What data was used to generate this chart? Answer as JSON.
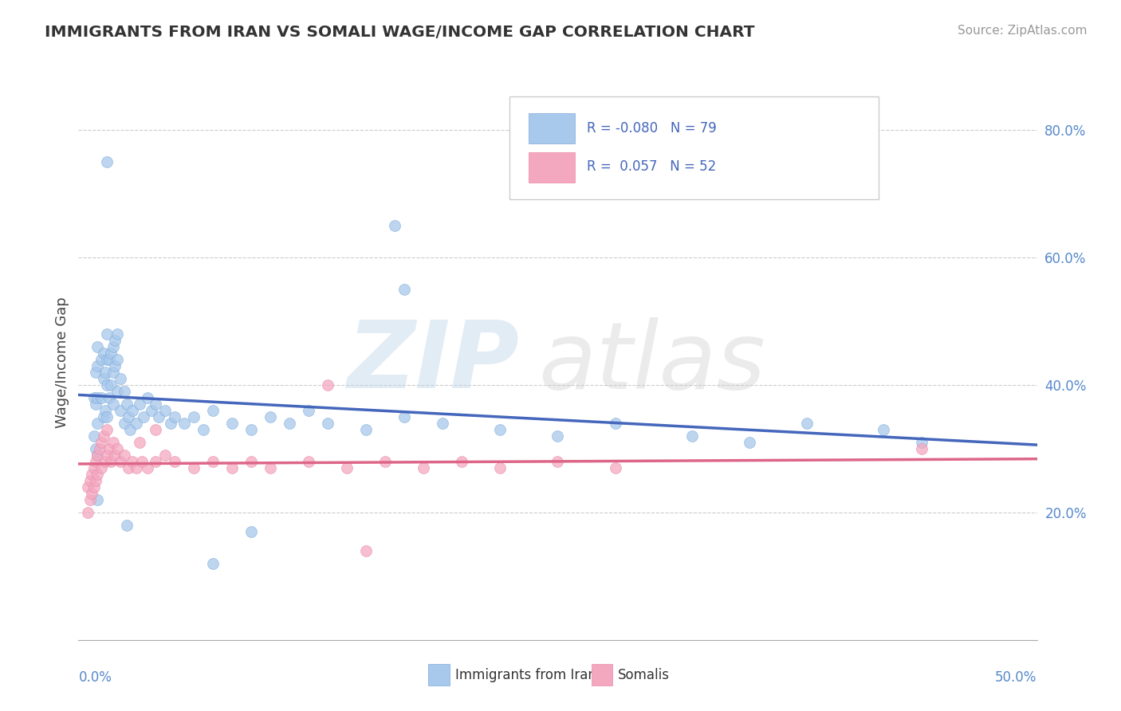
{
  "title": "IMMIGRANTS FROM IRAN VS SOMALI WAGE/INCOME GAP CORRELATION CHART",
  "source": "Source: ZipAtlas.com",
  "ylabel": "Wage/Income Gap",
  "legend_label1": "Immigrants from Iran",
  "legend_label2": "Somalis",
  "color_iran": "#a8c8ec",
  "color_somali": "#f4a8c0",
  "color_iran_line": "#4466bb",
  "color_somali_line": "#dd6688",
  "xmin": 0.0,
  "xmax": 0.5,
  "ymin": 0.0,
  "ymax": 0.87,
  "yticks": [
    0.2,
    0.4,
    0.6,
    0.8
  ],
  "ytick_labels": [
    "20.0%",
    "40.0%",
    "60.0%",
    "80.0%"
  ],
  "iran_x": [
    0.008,
    0.008,
    0.009,
    0.009,
    0.009,
    0.01,
    0.01,
    0.01,
    0.01,
    0.01,
    0.01,
    0.012,
    0.012,
    0.013,
    0.013,
    0.013,
    0.014,
    0.014,
    0.015,
    0.015,
    0.015,
    0.015,
    0.016,
    0.016,
    0.017,
    0.017,
    0.018,
    0.018,
    0.018,
    0.019,
    0.019,
    0.02,
    0.02,
    0.02,
    0.022,
    0.022,
    0.024,
    0.024,
    0.025,
    0.026,
    0.027,
    0.028,
    0.03,
    0.032,
    0.034,
    0.036,
    0.038,
    0.04,
    0.042,
    0.045,
    0.048,
    0.05,
    0.055,
    0.06,
    0.065,
    0.07,
    0.08,
    0.09,
    0.1,
    0.11,
    0.12,
    0.13,
    0.15,
    0.17,
    0.19,
    0.22,
    0.25,
    0.28,
    0.32,
    0.35,
    0.38,
    0.42,
    0.44,
    0.015,
    0.165,
    0.17,
    0.09,
    0.07,
    0.025
  ],
  "iran_y": [
    0.38,
    0.32,
    0.42,
    0.37,
    0.3,
    0.46,
    0.43,
    0.38,
    0.34,
    0.29,
    0.22,
    0.44,
    0.38,
    0.45,
    0.41,
    0.35,
    0.42,
    0.36,
    0.48,
    0.44,
    0.4,
    0.35,
    0.44,
    0.38,
    0.45,
    0.4,
    0.46,
    0.42,
    0.37,
    0.47,
    0.43,
    0.48,
    0.44,
    0.39,
    0.41,
    0.36,
    0.39,
    0.34,
    0.37,
    0.35,
    0.33,
    0.36,
    0.34,
    0.37,
    0.35,
    0.38,
    0.36,
    0.37,
    0.35,
    0.36,
    0.34,
    0.35,
    0.34,
    0.35,
    0.33,
    0.36,
    0.34,
    0.33,
    0.35,
    0.34,
    0.36,
    0.34,
    0.33,
    0.35,
    0.34,
    0.33,
    0.32,
    0.34,
    0.32,
    0.31,
    0.34,
    0.33,
    0.31,
    0.75,
    0.65,
    0.55,
    0.17,
    0.12,
    0.18
  ],
  "somali_x": [
    0.005,
    0.005,
    0.006,
    0.006,
    0.007,
    0.007,
    0.008,
    0.008,
    0.009,
    0.009,
    0.01,
    0.01,
    0.011,
    0.012,
    0.012,
    0.013,
    0.014,
    0.015,
    0.015,
    0.016,
    0.017,
    0.018,
    0.019,
    0.02,
    0.022,
    0.024,
    0.026,
    0.028,
    0.03,
    0.033,
    0.036,
    0.04,
    0.045,
    0.05,
    0.06,
    0.07,
    0.08,
    0.09,
    0.1,
    0.12,
    0.14,
    0.16,
    0.18,
    0.2,
    0.22,
    0.25,
    0.28,
    0.44,
    0.13,
    0.15,
    0.032,
    0.04
  ],
  "somali_y": [
    0.24,
    0.2,
    0.25,
    0.22,
    0.26,
    0.23,
    0.27,
    0.24,
    0.28,
    0.25,
    0.29,
    0.26,
    0.3,
    0.31,
    0.27,
    0.32,
    0.28,
    0.33,
    0.29,
    0.3,
    0.28,
    0.31,
    0.29,
    0.3,
    0.28,
    0.29,
    0.27,
    0.28,
    0.27,
    0.28,
    0.27,
    0.28,
    0.29,
    0.28,
    0.27,
    0.28,
    0.27,
    0.28,
    0.27,
    0.28,
    0.27,
    0.28,
    0.27,
    0.28,
    0.27,
    0.28,
    0.27,
    0.3,
    0.4,
    0.14,
    0.31,
    0.33
  ]
}
